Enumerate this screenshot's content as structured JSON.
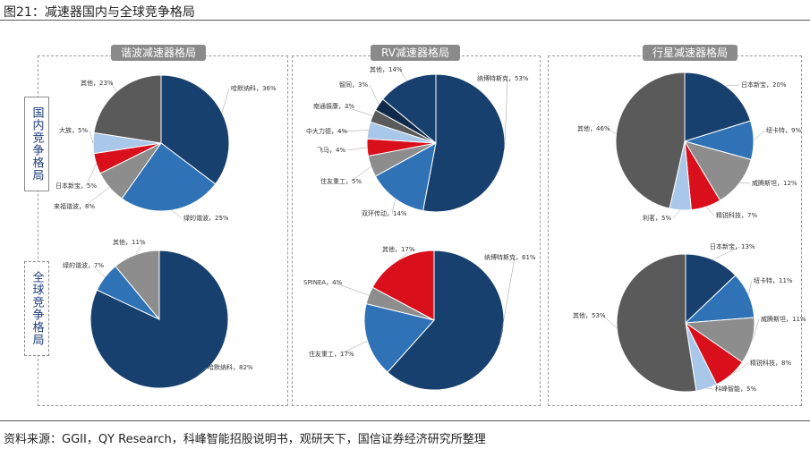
{
  "figure_title": "图21：减速器国内与全球竞争格局",
  "source_note": "资料来源：GGII，QY Research，科峰智能招股说明书，观研天下，国信证券经济研究所整理",
  "side_labels": {
    "domestic": "国内竞争格局",
    "global": "全球竞争格局"
  },
  "panels": [
    {
      "title": "谐波减速器格局"
    },
    {
      "title": "RV减速器格局"
    },
    {
      "title": "行星减速器格局"
    }
  ],
  "colors": {
    "navy": "#17406f",
    "blue": "#2f72b6",
    "gray": "#8d8d8d",
    "red": "#d9101b",
    "lightblue": "#a9c7e8",
    "darkgray": "#5a5a5a",
    "darknavy": "#0f2a4a",
    "black": "#2a2a2a"
  },
  "chart_data": [
    {
      "type": "pie",
      "panel": "谐波减速器格局",
      "scope": "国内竞争格局",
      "slices": [
        {
          "name": "哈默纳科",
          "value": 36,
          "label": "哈默纳科，36%",
          "color": "navy"
        },
        {
          "name": "绿的谐波",
          "value": 25,
          "label": "绿的谐波，25%",
          "color": "blue"
        },
        {
          "name": "来福谐波",
          "value": 8,
          "label": "来福谐波，8%",
          "color": "gray"
        },
        {
          "name": "日本新宝",
          "value": 5,
          "label": "日本新宝，5%",
          "color": "red"
        },
        {
          "name": "大族",
          "value": 5,
          "label": "大族，5%",
          "color": "lightblue"
        },
        {
          "name": "其他",
          "value": 23,
          "label": "其他，23%",
          "color": "darkgray"
        }
      ]
    },
    {
      "type": "pie",
      "panel": "RV减速器格局",
      "scope": "国内竞争格局",
      "slices": [
        {
          "name": "纳博特斯克",
          "value": 53,
          "label": "纳博特斯克，53%",
          "color": "navy"
        },
        {
          "name": "双环传动",
          "value": 14,
          "label": "双环传动，14%",
          "color": "blue"
        },
        {
          "name": "住友重工",
          "value": 5,
          "label": "住友重工，5%",
          "color": "gray"
        },
        {
          "name": "飞马",
          "value": 4,
          "label": "飞马，4%",
          "color": "red"
        },
        {
          "name": "中大力德",
          "value": 4,
          "label": "中大力德，4%",
          "color": "lightblue"
        },
        {
          "name": "南通振康",
          "value": 3,
          "label": "南通振康，3%",
          "color": "darkgray"
        },
        {
          "name": "智同",
          "value": 3,
          "label": "智同，3%",
          "color": "darknavy"
        },
        {
          "name": "其他",
          "value": 14,
          "label": "其他，14%",
          "color": "navy"
        }
      ]
    },
    {
      "type": "pie",
      "panel": "行星减速器格局",
      "scope": "国内竞争格局",
      "slices": [
        {
          "name": "日本新宝",
          "value": 20,
          "label": "日本新宝，20%",
          "color": "navy"
        },
        {
          "name": "纽卡特",
          "value": 9,
          "label": "纽卡特，9%",
          "color": "blue"
        },
        {
          "name": "威腾斯坦",
          "value": 12,
          "label": "威腾斯坦，12%",
          "color": "gray"
        },
        {
          "name": "精锐科技",
          "value": 7,
          "label": "精锐科技，7%",
          "color": "red"
        },
        {
          "name": "利茗",
          "value": 5,
          "label": "利茗，5%",
          "color": "lightblue"
        },
        {
          "name": "其他",
          "value": 46,
          "label": "其他，46%",
          "color": "darkgray"
        }
      ]
    },
    {
      "type": "pie",
      "panel": "谐波减速器格局",
      "scope": "全球竞争格局",
      "slices": [
        {
          "name": "哈默纳科",
          "value": 82,
          "label": "哈默纳科，82%",
          "color": "navy"
        },
        {
          "name": "绿的谐波",
          "value": 7,
          "label": "绿的谐波，7%",
          "color": "blue"
        },
        {
          "name": "其他",
          "value": 11,
          "label": "其他，11%",
          "color": "gray"
        }
      ]
    },
    {
      "type": "pie",
      "panel": "RV减速器格局",
      "scope": "全球竞争格局",
      "slices": [
        {
          "name": "纳博特斯克",
          "value": 61,
          "label": "纳博特斯克，61%",
          "color": "navy"
        },
        {
          "name": "住友重工",
          "value": 17,
          "label": "住友重工，17%",
          "color": "blue"
        },
        {
          "name": "SPINEA",
          "value": 4,
          "label": "SPINEA，4%",
          "color": "gray"
        },
        {
          "name": "其他",
          "value": 17,
          "label": "其他，17%",
          "color": "red"
        }
      ]
    },
    {
      "type": "pie",
      "panel": "行星减速器格局",
      "scope": "全球竞争格局",
      "slices": [
        {
          "name": "日本新宝",
          "value": 13,
          "label": "日本新宝，13%",
          "color": "navy"
        },
        {
          "name": "纽卡特",
          "value": 11,
          "label": "纽卡特，11%",
          "color": "blue"
        },
        {
          "name": "威腾斯坦",
          "value": 11,
          "label": "威腾斯坦，11%",
          "color": "gray"
        },
        {
          "name": "精锐科技",
          "value": 8,
          "label": "精锐科技，8%",
          "color": "red"
        },
        {
          "name": "科峰智能",
          "value": 5,
          "label": "科峰智能，5%",
          "color": "lightblue"
        },
        {
          "name": "其他",
          "value": 53,
          "label": "其他，53%",
          "color": "darkgray"
        }
      ]
    }
  ]
}
